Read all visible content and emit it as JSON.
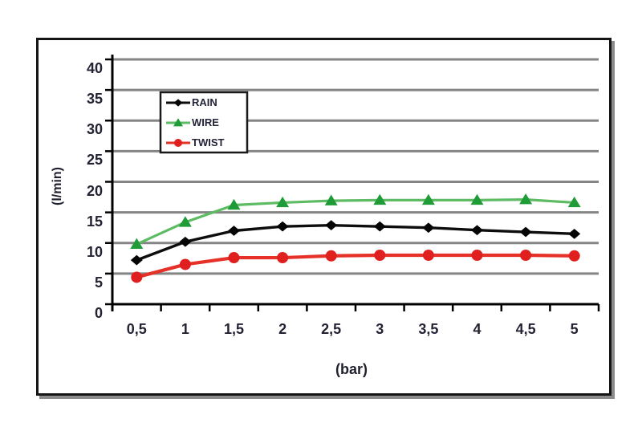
{
  "window": {
    "background": "#ffffff"
  },
  "frame": {
    "border_color": "#141414",
    "shadow_color": "#8b8b8b"
  },
  "chart_data": {
    "type": "line",
    "xlabel": "(bar)",
    "ylabel": "(l/min)",
    "x": [
      0.5,
      1,
      1.5,
      2,
      2.5,
      3,
      3.5,
      4,
      4.5,
      5
    ],
    "x_tick_labels": [
      "0,5",
      "1",
      "1,5",
      "2",
      "2,5",
      "3",
      "3,5",
      "4",
      "4,5",
      "5"
    ],
    "y_ticks": [
      0,
      5,
      10,
      15,
      20,
      25,
      30,
      35,
      40
    ],
    "ylim": [
      0,
      40
    ],
    "grid": "horizontal-only",
    "legend": {
      "position": "top-left-inside",
      "entries": [
        "RAIN",
        "WIRE",
        "TWIST"
      ]
    },
    "series": [
      {
        "name": "RAIN",
        "marker": "diamond",
        "line_color": "#0d0d0d",
        "marker_color": "#050505",
        "values": [
          7.2,
          10.2,
          12.0,
          12.7,
          12.9,
          12.7,
          12.5,
          12.1,
          11.8,
          11.5
        ]
      },
      {
        "name": "WIRE",
        "marker": "triangle",
        "line_color": "#5dbb63",
        "marker_color": "#1f9c38",
        "values": [
          9.8,
          13.4,
          16.2,
          16.6,
          16.9,
          17.0,
          17.0,
          17.0,
          17.1,
          16.6
        ]
      },
      {
        "name": "TWIST",
        "marker": "circle",
        "line_color": "#e63129",
        "marker_color": "#e01f1f",
        "values": [
          4.4,
          6.5,
          7.6,
          7.6,
          7.9,
          8.0,
          8.0,
          8.0,
          8.0,
          7.9
        ]
      }
    ],
    "colors": {
      "gridline": "#858585",
      "axis": "#000000",
      "tick_label": "#232334",
      "legend_border": "#1a1a1a",
      "legend_background": "#ffffff"
    }
  }
}
